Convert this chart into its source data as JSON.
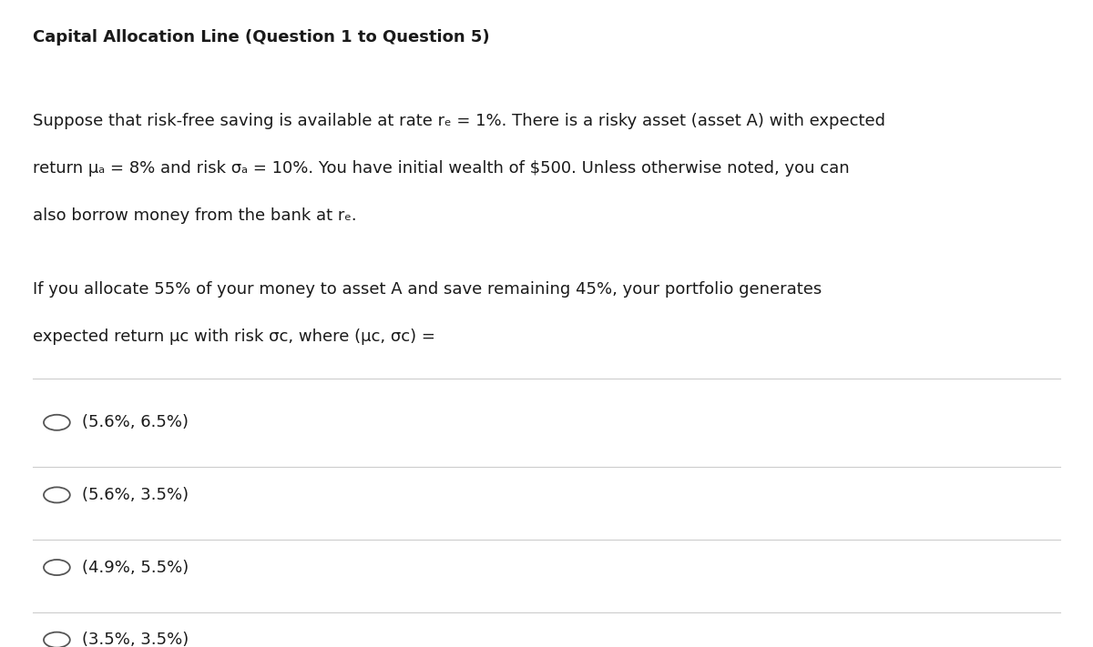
{
  "title": "Capital Allocation Line (Question 1 to Question 5)",
  "title_fontsize": 13,
  "title_fontweight": "bold",
  "background_color": "#ffffff",
  "text_color": "#1a1a1a",
  "paragraph1_lines": [
    "Suppose that risk-free saving is available at rate rₑ = 1%. There is a risky asset (asset A) with expected",
    "return μₐ = 8% and risk σₐ = 10%. You have initial wealth of $500. Unless otherwise noted, you can",
    "also borrow money from the bank at rₑ."
  ],
  "paragraph2_lines": [
    "If you allocate 55% of your money to asset A and save remaining 45%, your portfolio generates",
    "expected return μᴄ with risk σᴄ, where (μᴄ, σᴄ) ="
  ],
  "options": [
    "(5.6%, 6.5%)",
    "(5.6%, 3.5%)",
    "(4.9%, 5.5%)",
    "(3.5%, 3.5%)"
  ],
  "body_fontsize": 13,
  "option_fontsize": 13,
  "divider_color": "#cccccc",
  "circle_color": "#555555"
}
